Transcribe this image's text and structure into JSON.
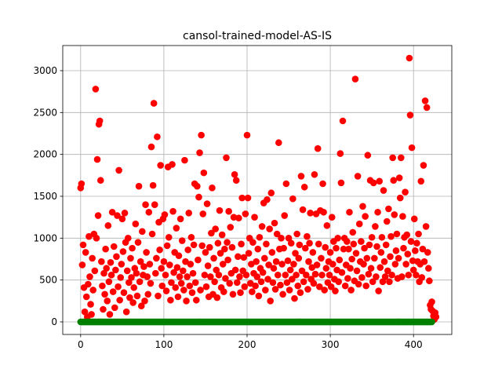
{
  "chart_data": {
    "type": "scatter",
    "title": "cansol-trained-model-AS-IS",
    "x": [
      0,
      1,
      2,
      3,
      4,
      5,
      6,
      7,
      8,
      9,
      10,
      11,
      12,
      13,
      14,
      15,
      16,
      17,
      18,
      19,
      20,
      21,
      22,
      23,
      24,
      25,
      26,
      27,
      28,
      29,
      30,
      31,
      32,
      33,
      34,
      35,
      36,
      37,
      38,
      39,
      40,
      41,
      42,
      43,
      44,
      45,
      46,
      47,
      48,
      49,
      50,
      51,
      52,
      53,
      54,
      55,
      56,
      57,
      58,
      59,
      60,
      61,
      62,
      63,
      64,
      65,
      66,
      67,
      68,
      69,
      70,
      71,
      72,
      73,
      74,
      75,
      76,
      77,
      78,
      79,
      80,
      81,
      82,
      83,
      84,
      85,
      86,
      87,
      88,
      89,
      90,
      91,
      92,
      93,
      94,
      95,
      96,
      97,
      98,
      99,
      100,
      101,
      102,
      103,
      104,
      105,
      106,
      107,
      108,
      109,
      110,
      111,
      112,
      113,
      114,
      115,
      116,
      117,
      118,
      119,
      120,
      121,
      122,
      123,
      124,
      125,
      126,
      127,
      128,
      129,
      130,
      131,
      132,
      133,
      134,
      135,
      136,
      137,
      138,
      139,
      140,
      141,
      142,
      143,
      144,
      145,
      146,
      147,
      148,
      149,
      150,
      151,
      152,
      153,
      154,
      155,
      156,
      157,
      158,
      159,
      160,
      161,
      162,
      163,
      164,
      165,
      166,
      167,
      168,
      169,
      170,
      171,
      172,
      173,
      174,
      175,
      176,
      177,
      178,
      179,
      180,
      181,
      182,
      183,
      184,
      185,
      186,
      187,
      188,
      189,
      190,
      191,
      192,
      193,
      194,
      195,
      196,
      197,
      198,
      199,
      200,
      201,
      202,
      203,
      204,
      205,
      206,
      207,
      208,
      209,
      210,
      211,
      212,
      213,
      214,
      215,
      216,
      217,
      218,
      219,
      220,
      221,
      222,
      223,
      224,
      225,
      226,
      227,
      228,
      229,
      230,
      231,
      232,
      233,
      234,
      235,
      236,
      237,
      238,
      239,
      240,
      241,
      242,
      243,
      244,
      245,
      246,
      247,
      248,
      249,
      250,
      251,
      252,
      253,
      254,
      255,
      256,
      257,
      258,
      259,
      260,
      261,
      262,
      263,
      264,
      265,
      266,
      267,
      268,
      269,
      270,
      271,
      272,
      273,
      274,
      275,
      276,
      277,
      278,
      279,
      280,
      281,
      282,
      283,
      284,
      285,
      286,
      287,
      288,
      289,
      290,
      291,
      292,
      293,
      294,
      295,
      296,
      297,
      298,
      299,
      300,
      301,
      302,
      303,
      304,
      305,
      306,
      307,
      308,
      309,
      310,
      311,
      312,
      313,
      314,
      315,
      316,
      317,
      318,
      319,
      320,
      321,
      322,
      323,
      324,
      325,
      326,
      327,
      328,
      329,
      330,
      331,
      332,
      333,
      334,
      335,
      336,
      337,
      338,
      339,
      340,
      341,
      342,
      343,
      344,
      345,
      346,
      347,
      348,
      349,
      350,
      351,
      352,
      353,
      354,
      355,
      356,
      357,
      358,
      359,
      360,
      361,
      362,
      363,
      364,
      365,
      366,
      367,
      368,
      369,
      370,
      371,
      372,
      373,
      374,
      375,
      376,
      377,
      378,
      379,
      380,
      381,
      382,
      383,
      384,
      385,
      386,
      387,
      388,
      389,
      390,
      391,
      392,
      393,
      394,
      395,
      396,
      397,
      398,
      399,
      400,
      401,
      402,
      403,
      404,
      405,
      406,
      407,
      408,
      409,
      410,
      411,
      412,
      413,
      414,
      415,
      416,
      417,
      418,
      419,
      420,
      421,
      422,
      423,
      424,
      425,
      426,
      427
    ],
    "series": [
      {
        "color": "#ff0000",
        "values": [
          1600,
          1650,
          680,
          920,
          410,
          120,
          830,
          300,
          60,
          450,
          1020,
          540,
          210,
          90,
          760,
          380,
          1050,
          610,
          2780,
          1000,
          1940,
          1270,
          2360,
          2400,
          1690,
          720,
          430,
          150,
          580,
          330,
          870,
          640,
          250,
          1150,
          480,
          90,
          710,
          560,
          1310,
          360,
          900,
          170,
          620,
          780,
          1270,
          420,
          1810,
          260,
          530,
          690,
          1230,
          840,
          350,
          1300,
          950,
          120,
          610,
          1000,
          470,
          290,
          760,
          530,
          880,
          230,
          410,
          640,
          1170,
          580,
          310,
          950,
          1620,
          480,
          720,
          190,
          1080,
          560,
          660,
          250,
          1400,
          830,
          540,
          330,
          1310,
          690,
          460,
          2090,
          1050,
          1630,
          2610,
          1400,
          580,
          760,
          2210,
          310,
          1190,
          860,
          1870,
          640,
          430,
          1230,
          720,
          1280,
          560,
          370,
          910,
          1850,
          1010,
          680,
          260,
          470,
          1880,
          1320,
          590,
          830,
          410,
          1120,
          650,
          300,
          790,
          540,
          1230,
          460,
          970,
          610,
          380,
          1930,
          720,
          250,
          540,
          860,
          1300,
          430,
          690,
          1010,
          350,
          580,
          920,
          1650,
          470,
          260,
          1620,
          740,
          1490,
          2020,
          380,
          2230,
          910,
          1290,
          1780,
          560,
          830,
          420,
          1410,
          670,
          300,
          890,
          540,
          1060,
          1600,
          330,
          760,
          480,
          1110,
          620,
          290,
          940,
          560,
          1330,
          820,
          410,
          1040,
          690,
          360,
          870,
          520,
          1960,
          950,
          740,
          1320,
          460,
          1130,
          580,
          890,
          330,
          1250,
          1760,
          620,
          1690,
          470,
          780,
          1240,
          540,
          350,
          930,
          1480,
          610,
          770,
          420,
          1290,
          560,
          2230,
          1480,
          820,
          1000,
          460,
          690,
          360,
          950,
          580,
          1250,
          430,
          720,
          540,
          870,
          310,
          1010,
          640,
          480,
          1140,
          590,
          1420,
          760,
          380,
          930,
          1460,
          510,
          680,
          1110,
          250,
          1540,
          830,
          470,
          640,
          1180,
          390,
          720,
          1050,
          560,
          2140,
          870,
          440,
          1000,
          690,
          330,
          880,
          1270,
          560,
          1650,
          470,
          730,
          1000,
          380,
          620,
          940,
          510,
          1470,
          690,
          280,
          820,
          560,
          1050,
          430,
          760,
          920,
          350,
          1740,
          610,
          1340,
          480,
          1610,
          880,
          560,
          1020,
          390,
          720,
          940,
          1300,
          510,
          650,
          830,
          460,
          1760,
          570,
          1290,
          680,
          2070,
          930,
          420,
          1330,
          760,
          560,
          1650,
          1310,
          380,
          890,
          640,
          1150,
          470,
          720,
          560,
          830,
          420,
          1250,
          690,
          960,
          510,
          370,
          880,
          620,
          1000,
          480,
          740,
          2010,
          1660,
          590,
          2400,
          870,
          1000,
          430,
          680,
          960,
          520,
          870,
          1310,
          640,
          380,
          750,
          1070,
          930,
          490,
          2900,
          820,
          610,
          1740,
          450,
          1170,
          720,
          960,
          530,
          1380,
          690,
          880,
          1260,
          430,
          760,
          1990,
          570,
          920,
          1690,
          640,
          1010,
          480,
          1660,
          760,
          1140,
          540,
          900,
          1310,
          370,
          1680,
          650,
          830,
          1010,
          480,
          1570,
          720,
          540,
          920,
          1200,
          610,
          1350,
          480,
          780,
          1020,
          560,
          1960,
          1690,
          1280,
          690,
          850,
          1050,
          520,
          760,
          1720,
          1480,
          1960,
          540,
          1260,
          880,
          1010,
          1550,
          690,
          1040,
          810,
          560,
          3150,
          2470,
          960,
          2080,
          730,
          620,
          1230,
          850,
          560,
          940,
          720,
          1050,
          480,
          690,
          1680,
          530,
          870,
          1870,
          720,
          2640,
          1140,
          2560,
          830,
          640,
          490,
          200,
          150,
          240,
          130,
          70,
          30,
          110,
          60
        ]
      },
      {
        "color": "#008000",
        "values": [
          0,
          0,
          0,
          0,
          0,
          0,
          0,
          0,
          0,
          0,
          0,
          0,
          0,
          0,
          0,
          0,
          0,
          0,
          0,
          0,
          0,
          0,
          0,
          0,
          0,
          0,
          0,
          0,
          0,
          0,
          0,
          0,
          0,
          0,
          0,
          0,
          0,
          0,
          0,
          0,
          0,
          0,
          0,
          0,
          0,
          0,
          0,
          0,
          0,
          0,
          0,
          0,
          0,
          0,
          0,
          0,
          0,
          0,
          0,
          0,
          0,
          0,
          0,
          0,
          0,
          0,
          0,
          0,
          0,
          0,
          0,
          0,
          0,
          0,
          0,
          0,
          0,
          0,
          0,
          0,
          0,
          0,
          0,
          0,
          0,
          0,
          0,
          0,
          0,
          0,
          0,
          0,
          0,
          0,
          0,
          0,
          0,
          0,
          0,
          0,
          0,
          0,
          0,
          0,
          0,
          0,
          0,
          0,
          0,
          0,
          0,
          0,
          0,
          0,
          0,
          0,
          0,
          0,
          0,
          0,
          0,
          0,
          0,
          0,
          0,
          0,
          0,
          0,
          0,
          0,
          0,
          0,
          0,
          0,
          0,
          0,
          0,
          0,
          0,
          0,
          0,
          0,
          0,
          0,
          0,
          0,
          0,
          0,
          0,
          0,
          0,
          0,
          0,
          0,
          0,
          0,
          0,
          0,
          0,
          0,
          0,
          0,
          0,
          0,
          0,
          0,
          0,
          0,
          0,
          0,
          0,
          0,
          0,
          0,
          0,
          0,
          0,
          0,
          0,
          0,
          0,
          0,
          0,
          0,
          0,
          0,
          0,
          0,
          0,
          0,
          0,
          0,
          0,
          0,
          0,
          0,
          0,
          0,
          0,
          0,
          0,
          0,
          0,
          0,
          0,
          0,
          0,
          0,
          0,
          0,
          0,
          0,
          0,
          0,
          0,
          0,
          0,
          0,
          0,
          0,
          0,
          0,
          0,
          0,
          0,
          0,
          0,
          0,
          0,
          0,
          0,
          0,
          0,
          0,
          0,
          0,
          0,
          0,
          0,
          0,
          0,
          0,
          0,
          0,
          0,
          0,
          0,
          0,
          0,
          0,
          0,
          0,
          0,
          0,
          0,
          0,
          0,
          0,
          0,
          0,
          0,
          0,
          0,
          0,
          0,
          0,
          0,
          0,
          0,
          0,
          0,
          0,
          0,
          0,
          0,
          0,
          0,
          0,
          0,
          0,
          0,
          0,
          0,
          0,
          0,
          0,
          0,
          0,
          0,
          0,
          0,
          0,
          0,
          0,
          0,
          0,
          0,
          0,
          0,
          0,
          0,
          0,
          0,
          0,
          0,
          0,
          0,
          0,
          0,
          0,
          0,
          0,
          0,
          0,
          0,
          0,
          0,
          0,
          0,
          0,
          0,
          0,
          0,
          0,
          0,
          0,
          0,
          0,
          0,
          0,
          0,
          0,
          0,
          0,
          0,
          0,
          0,
          0,
          0,
          0,
          0,
          0,
          0,
          0,
          0,
          0,
          0,
          0,
          0,
          0,
          0,
          0,
          0,
          0,
          0,
          0,
          0,
          0,
          0,
          0,
          0,
          0,
          0,
          0,
          0,
          0,
          0,
          0,
          0,
          0,
          0,
          0,
          0,
          0,
          0,
          0,
          0,
          0,
          0,
          0,
          0,
          0,
          0,
          0,
          0,
          0,
          0,
          0,
          0,
          0,
          0,
          0,
          0,
          0,
          0,
          0,
          0,
          0,
          0,
          0,
          0,
          0,
          0,
          0,
          0,
          0,
          0,
          0,
          0,
          0,
          0,
          0,
          0,
          0,
          0,
          0,
          0,
          0,
          0,
          0,
          0,
          0,
          0
        ]
      }
    ],
    "xlim": [
      -21.5,
      446
    ],
    "ylim": [
      -150,
      3300
    ],
    "xticks": [
      0,
      100,
      200,
      300,
      400
    ],
    "yticks": [
      0,
      500,
      1000,
      1500,
      2000,
      2500,
      3000
    ],
    "grid": true
  }
}
